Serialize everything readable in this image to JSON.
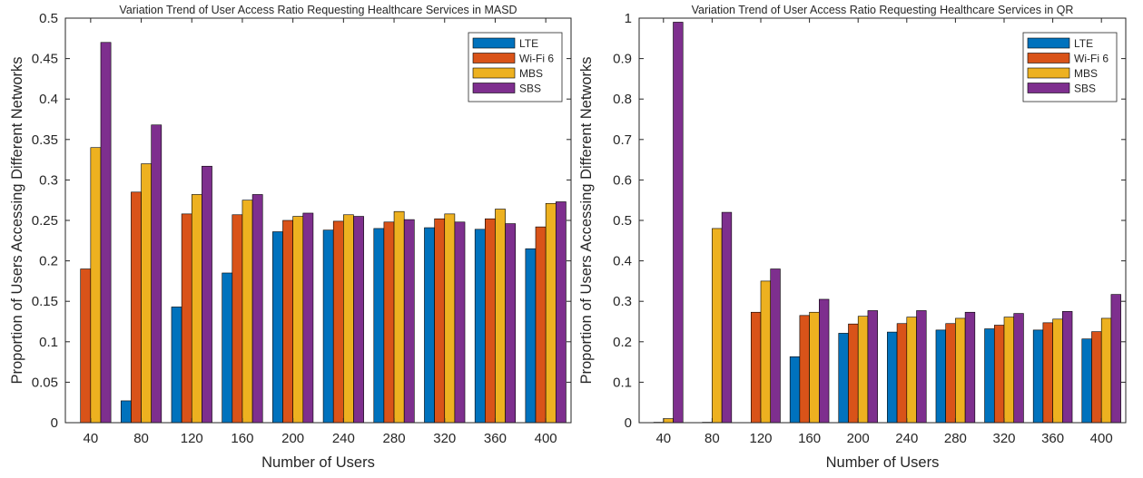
{
  "colors": {
    "LTE": "#0072BD",
    "Wi-Fi 6": "#D95319",
    "MBS": "#EDB120",
    "SBS": "#7E2F8E"
  },
  "chart_data": [
    {
      "type": "bar",
      "title": "Variation Trend of User Access Ratio Requesting Healthcare Services in MASD",
      "xlabel": "Number of Users",
      "ylabel": "Proportion of Users Accessing Different Networks",
      "categories": [
        "40",
        "80",
        "120",
        "160",
        "200",
        "240",
        "280",
        "320",
        "360",
        "400"
      ],
      "ylim": [
        0,
        0.5
      ],
      "yticks": [
        "0",
        "0.05",
        "0.1",
        "0.15",
        "0.2",
        "0.25",
        "0.3",
        "0.35",
        "0.4",
        "0.45",
        "0.5"
      ],
      "legend": [
        "LTE",
        "Wi-Fi 6",
        "MBS",
        "SBS"
      ],
      "legend_position": "top-right",
      "series": [
        {
          "name": "LTE",
          "values": [
            0,
            0.027,
            0.143,
            0.185,
            0.236,
            0.238,
            0.24,
            0.241,
            0.239,
            0.215
          ]
        },
        {
          "name": "Wi-Fi 6",
          "values": [
            0.19,
            0.285,
            0.258,
            0.257,
            0.25,
            0.249,
            0.248,
            0.252,
            0.252,
            0.242
          ]
        },
        {
          "name": "MBS",
          "values": [
            0.34,
            0.32,
            0.282,
            0.275,
            0.255,
            0.257,
            0.261,
            0.258,
            0.264,
            0.271
          ]
        },
        {
          "name": "SBS",
          "values": [
            0.47,
            0.368,
            0.317,
            0.282,
            0.259,
            0.255,
            0.251,
            0.248,
            0.246,
            0.273
          ]
        }
      ]
    },
    {
      "type": "bar",
      "title": "Variation Trend of User Access Ratio Requesting Healthcare Services in QR",
      "xlabel": "Number of Users",
      "ylabel": "Proportion of Users Accessing Different Networks",
      "categories": [
        "40",
        "80",
        "120",
        "160",
        "200",
        "240",
        "280",
        "320",
        "360",
        "400"
      ],
      "ylim": [
        0,
        1
      ],
      "yticks": [
        "0",
        "0.1",
        "0.2",
        "0.3",
        "0.4",
        "0.5",
        "0.6",
        "0.7",
        "0.8",
        "0.9",
        "1"
      ],
      "legend": [
        "LTE",
        "Wi-Fi 6",
        "MBS",
        "SBS"
      ],
      "legend_position": "top-right",
      "series": [
        {
          "name": "LTE",
          "values": [
            0,
            0,
            0,
            0.163,
            0.221,
            0.224,
            0.229,
            0.232,
            0.229,
            0.207
          ]
        },
        {
          "name": "Wi-Fi 6",
          "values": [
            0.001,
            0.001,
            0.273,
            0.265,
            0.244,
            0.245,
            0.245,
            0.241,
            0.247,
            0.225
          ]
        },
        {
          "name": "MBS",
          "values": [
            0.01,
            0.48,
            0.35,
            0.273,
            0.263,
            0.261,
            0.258,
            0.261,
            0.256,
            0.258
          ]
        },
        {
          "name": "SBS",
          "values": [
            0.99,
            0.52,
            0.38,
            0.305,
            0.277,
            0.277,
            0.273,
            0.27,
            0.275,
            0.317
          ]
        }
      ]
    }
  ]
}
